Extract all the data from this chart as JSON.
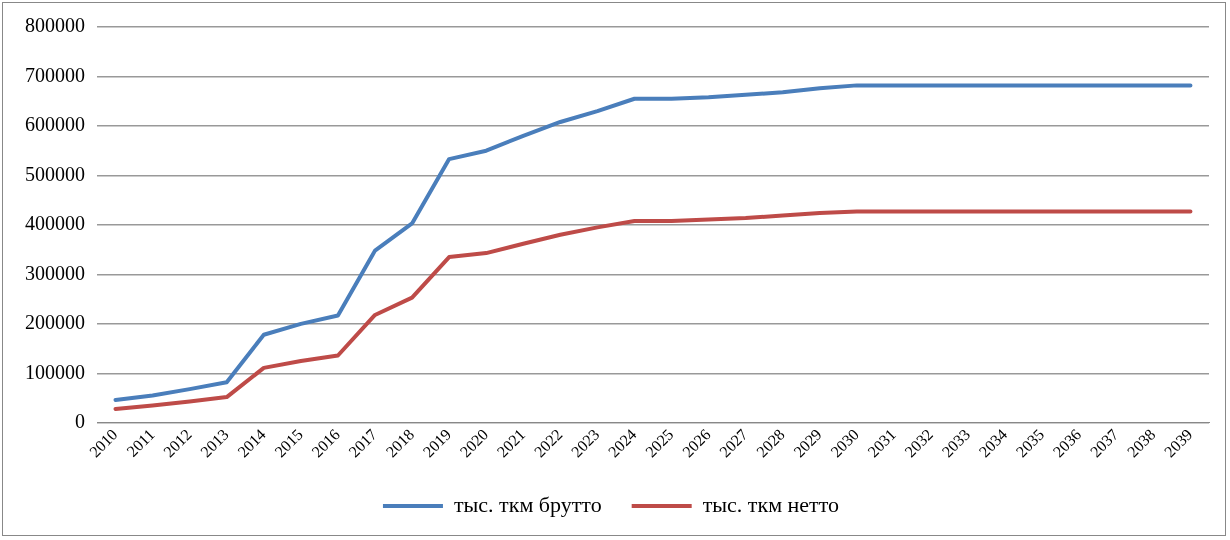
{
  "chart_data": {
    "type": "line",
    "categories": [
      "2010",
      "2011",
      "2012",
      "2013",
      "2014",
      "2015",
      "2016",
      "2017",
      "2018",
      "2019",
      "2020",
      "2021",
      "2022",
      "2023",
      "2024",
      "2025",
      "2026",
      "2027",
      "2028",
      "2029",
      "2030",
      "2031",
      "2032",
      "2033",
      "2034",
      "2035",
      "2036",
      "2037",
      "2038",
      "2039"
    ],
    "series": [
      {
        "name": "тыс. ткм брутто",
        "color": "#4a7ebb",
        "values": [
          46000,
          55000,
          68000,
          82000,
          178000,
          200000,
          217000,
          348000,
          403000,
          533000,
          550000,
          580000,
          608000,
          630000,
          655000,
          655000,
          658000,
          663000,
          668000,
          676000,
          682000,
          682000,
          682000,
          682000,
          682000,
          682000,
          682000,
          682000,
          682000,
          682000
        ]
      },
      {
        "name": "тыс. ткм нетто",
        "color": "#be4b48",
        "values": [
          28000,
          35000,
          43000,
          52000,
          111000,
          125000,
          136000,
          218000,
          253000,
          335000,
          343000,
          362000,
          380000,
          395000,
          408000,
          408000,
          411000,
          414000,
          419000,
          424000,
          427000,
          427000,
          427000,
          427000,
          427000,
          427000,
          427000,
          427000,
          427000,
          427000
        ]
      }
    ],
    "ylim": [
      0,
      800000
    ],
    "yticks": [
      0,
      100000,
      200000,
      300000,
      400000,
      500000,
      600000,
      700000,
      800000
    ],
    "grid": "y",
    "legend": "bottom",
    "marker": "none",
    "line_style": "solid"
  }
}
